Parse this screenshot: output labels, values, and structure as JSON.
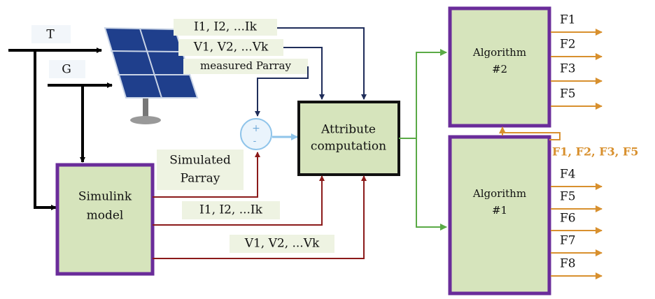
{
  "inputs": {
    "t": "T",
    "g": "G"
  },
  "signals": {
    "measured_current": "I1, I2, ...Ik",
    "measured_voltage": "V1, V2, ...Vk",
    "measured_power": "measured Parray",
    "simulated_power": [
      "Simulated",
      "Parray"
    ],
    "simulated_current": "I1, I2, ...Ik",
    "simulated_voltage": "V1, V2, ...Vk"
  },
  "sum": {
    "plus": "+",
    "minus": "-"
  },
  "nodes": {
    "simulink": [
      "Simulink",
      "model"
    ],
    "attribute": [
      "Attribute",
      "computation"
    ],
    "algorithm2": [
      "Algorithm",
      "#2"
    ],
    "algorithm1": [
      "Algorithm",
      "#1"
    ]
  },
  "outputs2": [
    "F1",
    "F2",
    "F3",
    "F5"
  ],
  "feedback": "F1, F2, F3, F5",
  "outputs1": [
    "F4",
    "F5",
    "F6",
    "F7",
    "F8"
  ]
}
